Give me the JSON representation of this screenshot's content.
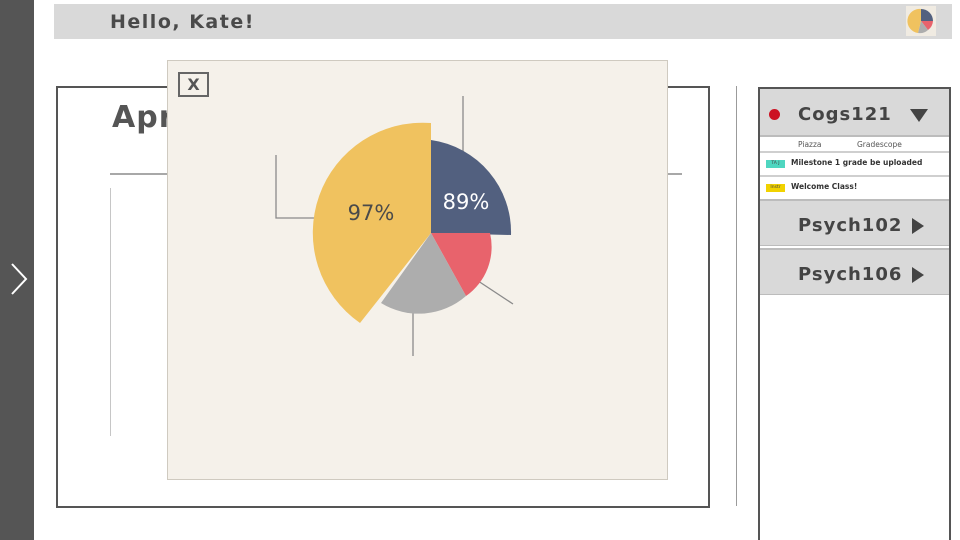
{
  "header": {
    "greeting": "Hello,  Kate!"
  },
  "main": {
    "month_title": "Apr"
  },
  "courses": {
    "active": {
      "name": "Cogs121",
      "status_color": "#cc1122",
      "links": [
        "Piazza",
        "Gradescope"
      ],
      "messages": [
        {
          "tag": "TA J",
          "tag_color": "#4fd6c0",
          "text": "Milestone 1 grade be uploaded"
        },
        {
          "tag": "Instr",
          "tag_color": "#f1d200",
          "text": "Welcome Class!"
        }
      ]
    },
    "others": [
      {
        "name": "Psych102"
      },
      {
        "name": "Psych106"
      }
    ]
  },
  "modal": {
    "close_label": "X",
    "chart_data": {
      "type": "pie",
      "slices": [
        {
          "label": "97%",
          "value": 97,
          "color": "#f0c25f"
        },
        {
          "label": "89%",
          "value": 89,
          "color": "#52607f"
        },
        {
          "color": "#e8636c"
        },
        {
          "color": "#adadad"
        }
      ]
    }
  },
  "colors": {
    "rail": "#555555",
    "header_bg": "#d9d9d9",
    "modal_bg": "#f5f1ea",
    "accent_yellow": "#f0c25f",
    "accent_navy": "#52607f",
    "accent_red": "#e8636c",
    "accent_gray": "#adadad"
  },
  "icons": {
    "rail": "chevron-right-icon",
    "avatar": "pie-avatar-icon",
    "expanded": "triangle-down-icon",
    "collapsed": "triangle-right-icon"
  }
}
